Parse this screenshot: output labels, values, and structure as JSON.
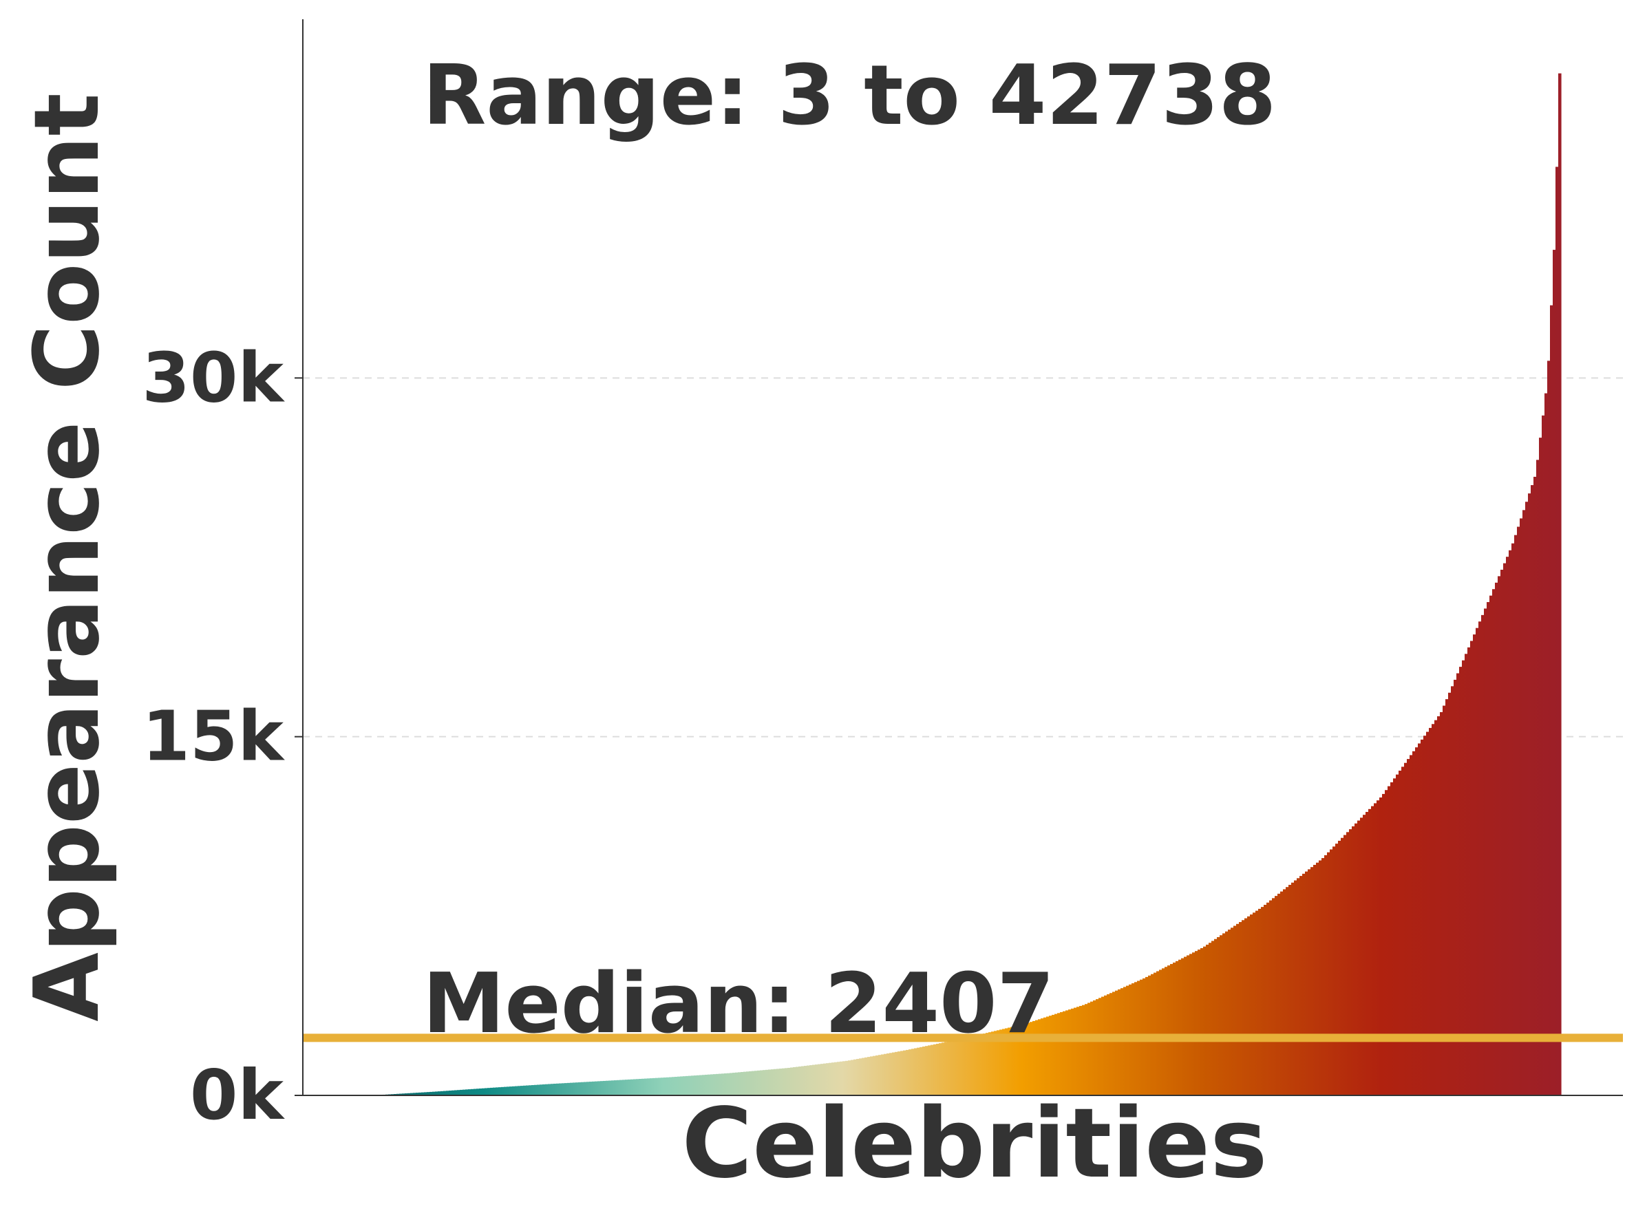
{
  "chart_data": {
    "type": "bar",
    "title": "",
    "xlabel": "Celebrities",
    "ylabel": "Appearance Count",
    "ylim": [
      0,
      45000
    ],
    "yticks": [
      {
        "value": 0,
        "label": "0k"
      },
      {
        "value": 15000,
        "label": "15k"
      },
      {
        "value": 30000,
        "label": "30k"
      }
    ],
    "grid": "horizontal dashed",
    "annotations": {
      "range_text": "Range: 3 to 42738",
      "median_text": "Median: 2407"
    },
    "median_value": 2407,
    "min_value": 3,
    "max_value": 42738,
    "sorted_ascending": true,
    "gradient_colors": [
      "#0d4f57",
      "#0e8a85",
      "#8fd1b8",
      "#e3d8a8",
      "#f29e00",
      "#c95a00",
      "#b0220f",
      "#9c1f28"
    ],
    "median_line_color": "#e8b039",
    "axis_color": "#333333",
    "grid_color": "#dddddd",
    "profile": [
      {
        "q": 0.0,
        "v": 3
      },
      {
        "q": 0.05,
        "v": 150
      },
      {
        "q": 0.1,
        "v": 320
      },
      {
        "q": 0.15,
        "v": 480
      },
      {
        "q": 0.2,
        "v": 620
      },
      {
        "q": 0.25,
        "v": 760
      },
      {
        "q": 0.3,
        "v": 930
      },
      {
        "q": 0.35,
        "v": 1150
      },
      {
        "q": 0.4,
        "v": 1450
      },
      {
        "q": 0.45,
        "v": 1900
      },
      {
        "q": 0.5,
        "v": 2407
      },
      {
        "q": 0.55,
        "v": 3000
      },
      {
        "q": 0.6,
        "v": 3800
      },
      {
        "q": 0.65,
        "v": 4900
      },
      {
        "q": 0.7,
        "v": 6200
      },
      {
        "q": 0.75,
        "v": 7900
      },
      {
        "q": 0.8,
        "v": 9900
      },
      {
        "q": 0.85,
        "v": 12500
      },
      {
        "q": 0.9,
        "v": 16000
      },
      {
        "q": 0.93,
        "v": 19500
      },
      {
        "q": 0.96,
        "v": 23000
      },
      {
        "q": 0.98,
        "v": 26000
      },
      {
        "q": 0.99,
        "v": 30000
      },
      {
        "q": 0.996,
        "v": 36000
      },
      {
        "q": 1.0,
        "v": 42738
      }
    ]
  }
}
